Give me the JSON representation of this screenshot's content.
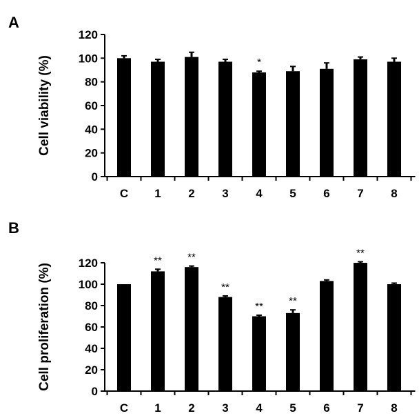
{
  "chart_data": [
    {
      "type": "bar",
      "panel_label": "A",
      "ylabel": "Cell viability (%)",
      "categories": [
        "C",
        "1",
        "2",
        "3",
        "4",
        "5",
        "6",
        "7",
        "8"
      ],
      "values": [
        100,
        97,
        101,
        97,
        88,
        89,
        91,
        99,
        97
      ],
      "errors": [
        2,
        2,
        4,
        2,
        1,
        4,
        5,
        2,
        3
      ],
      "significance": [
        "",
        "",
        "",
        "",
        "*",
        "",
        "",
        "",
        ""
      ],
      "ylim": [
        0,
        120
      ],
      "yticks": [
        0,
        20,
        40,
        60,
        80,
        100,
        120
      ],
      "bar_color": "#000000"
    },
    {
      "type": "bar",
      "panel_label": "B",
      "ylabel": "Cell proliferation (%)",
      "categories": [
        "C",
        "1",
        "2",
        "3",
        "4",
        "5",
        "6",
        "7",
        "8"
      ],
      "values": [
        100,
        112,
        116,
        88,
        70,
        73,
        103,
        120,
        100
      ],
      "errors": [
        0,
        2,
        1,
        1,
        1,
        3,
        1,
        1,
        1
      ],
      "significance": [
        "",
        "**",
        "**",
        "**",
        "**",
        "**",
        "",
        "**",
        ""
      ],
      "ylim": [
        0,
        120
      ],
      "yticks": [
        0,
        20,
        40,
        60,
        80,
        100,
        120
      ],
      "bar_color": "#000000"
    }
  ]
}
